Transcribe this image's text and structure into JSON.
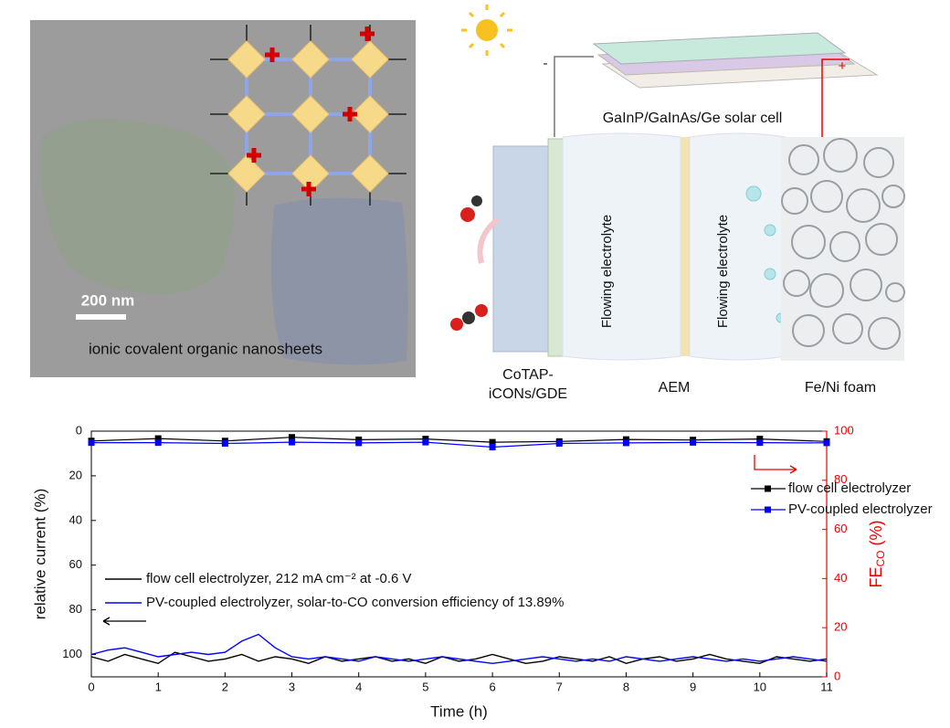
{
  "image_panel": {
    "scale_bar": "200 nm",
    "caption": "ionic covalent organic nanosheets"
  },
  "diagram": {
    "negative": "-",
    "positive": "+",
    "solar_cell": "GaInP/GaInAs/Ge solar cell",
    "chambers": [
      "Flowing electrolyte",
      "Flowing electrolyte"
    ],
    "cathode": [
      "CoTAP-",
      "iCONs/GDE"
    ],
    "membrane": "AEM",
    "anode": "Fe/Ni foam"
  },
  "chart_data": {
    "type": "line",
    "xlabel": "Time (h)",
    "ylabel": "relative current (%)",
    "y2label": {
      "text": "FE",
      "sub": "CO",
      "unit": " (%)"
    },
    "xlim": [
      0,
      11
    ],
    "xticks": [
      0,
      1,
      2,
      3,
      4,
      5,
      6,
      7,
      8,
      9,
      10,
      11
    ],
    "ylim": [
      110,
      0
    ],
    "yticks": [
      0,
      20,
      40,
      60,
      80,
      100
    ],
    "y2lim": [
      0,
      100
    ],
    "y2ticks": [
      0,
      20,
      40,
      60,
      80,
      100
    ],
    "series": [
      {
        "name": "flow cell electrolyzer, 212 mA cm⁻² at -0.6 V",
        "color": "#000000",
        "x": [
          0,
          0.25,
          0.5,
          0.75,
          1,
          1.25,
          1.5,
          1.75,
          2,
          2.25,
          2.5,
          2.75,
          3,
          3.25,
          3.5,
          3.75,
          4,
          4.25,
          4.5,
          4.75,
          5,
          5.25,
          5.5,
          5.75,
          6,
          6.25,
          6.5,
          6.75,
          7,
          7.25,
          7.5,
          7.75,
          8,
          8.25,
          8.5,
          8.75,
          9,
          9.25,
          9.5,
          9.75,
          10,
          10.25,
          10.5,
          10.75,
          11
        ],
        "values": [
          101,
          103,
          100,
          102,
          104,
          99,
          101,
          103,
          102,
          100,
          103,
          101,
          102,
          104,
          101,
          103,
          102,
          101,
          103,
          102,
          104,
          101,
          103,
          102,
          100,
          102,
          104,
          103,
          101,
          102,
          103,
          101,
          104,
          102,
          101,
          103,
          102,
          100,
          102,
          103,
          104,
          101,
          102,
          103,
          102
        ]
      },
      {
        "name": "PV-coupled electrolyzer, solar-to-CO conversion efficiency of 13.89%",
        "color": "#0000ff",
        "x": [
          0,
          0.25,
          0.5,
          0.75,
          1,
          1.25,
          1.5,
          1.75,
          2,
          2.25,
          2.5,
          2.75,
          3,
          3.25,
          3.5,
          3.75,
          4,
          4.25,
          4.5,
          4.75,
          5,
          5.25,
          5.5,
          5.75,
          6,
          6.25,
          6.5,
          6.75,
          7,
          7.25,
          7.5,
          7.75,
          8,
          8.25,
          8.5,
          8.75,
          9,
          9.25,
          9.5,
          9.75,
          10,
          10.25,
          10.5,
          10.75,
          11
        ],
        "values": [
          100,
          98,
          97,
          99,
          101,
          100,
          99,
          100,
          99,
          94,
          91,
          97,
          101,
          102,
          101,
          102,
          103,
          101,
          102,
          103,
          102,
          101,
          102,
          103,
          104,
          103,
          102,
          101,
          102,
          103,
          102,
          103,
          101,
          102,
          103,
          102,
          101,
          102,
          103,
          102,
          103,
          102,
          101,
          102,
          103
        ]
      },
      {
        "name": "flow cell electrolyzer",
        "color": "#000000",
        "axis": "y2",
        "marker": "square",
        "x": [
          0,
          1,
          2,
          3,
          4,
          5,
          6,
          7,
          8,
          9,
          10,
          11
        ],
        "values": [
          96,
          97,
          96,
          97.5,
          96.5,
          96.8,
          95.5,
          95.8,
          96.6,
          96.4,
          96.8,
          95.8
        ]
      },
      {
        "name": "PV-coupled electrolyzer",
        "color": "#0000ff",
        "axis": "y2",
        "marker": "square",
        "x": [
          0,
          1,
          2,
          3,
          4,
          5,
          6,
          7,
          8,
          9,
          10,
          11
        ],
        "values": [
          95.3,
          95.3,
          95,
          95.5,
          95.2,
          95.5,
          93.5,
          95,
          95.2,
          95.4,
          95.3,
          95.2
        ]
      }
    ]
  }
}
